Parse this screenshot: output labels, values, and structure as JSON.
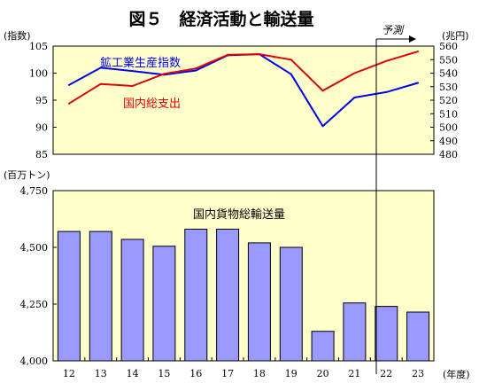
{
  "title": "図５　経済活動と輸送量",
  "forecast_label": "予測",
  "chart_data": [
    {
      "type": "line",
      "x": [
        "12",
        "13",
        "14",
        "15",
        "16",
        "17",
        "18",
        "19",
        "20",
        "21",
        "22",
        "23"
      ],
      "left_axis": {
        "unit": "(指数)",
        "ylim": [
          85,
          105
        ],
        "ticks": [
          "105",
          "100",
          "95",
          "90",
          "85"
        ]
      },
      "right_axis": {
        "unit": "(兆円)",
        "ylim": [
          480,
          560
        ],
        "ticks": [
          "560",
          "550",
          "540",
          "530",
          "520",
          "510",
          "500",
          "490",
          "480"
        ]
      },
      "series": [
        {
          "name": "鉱工業生産指数",
          "axis": "left",
          "color": "#0000ee",
          "values": [
            97.8,
            101.0,
            100.4,
            99.7,
            100.5,
            103.3,
            103.5,
            99.8,
            90.2,
            95.5,
            96.5,
            98.2
          ]
        },
        {
          "name": "国内総支出",
          "axis": "right",
          "color": "#e00000",
          "values": [
            517.5,
            532.0,
            530.5,
            539.5,
            543.5,
            553.5,
            554.0,
            550.0,
            527.0,
            540.0,
            549.0,
            556.0
          ]
        }
      ],
      "grid": false,
      "background": "#ffffcc"
    },
    {
      "type": "bar",
      "categories": [
        "12",
        "13",
        "14",
        "15",
        "16",
        "17",
        "18",
        "19",
        "20",
        "21",
        "22",
        "23"
      ],
      "values": [
        4570,
        4570,
        4535,
        4505,
        4580,
        4580,
        4520,
        4500,
        4130,
        4255,
        4240,
        4215
      ],
      "series_label": "国内貨物総輸送量",
      "ylabel": "(百万トン)",
      "xunit": "(年度)",
      "ylim": [
        4000,
        4750
      ],
      "ticks": [
        "4,750",
        "4,500",
        "4,250",
        "4,000"
      ],
      "bar_color": "#9999ff",
      "grid": false,
      "background": "#ffffcc"
    }
  ]
}
